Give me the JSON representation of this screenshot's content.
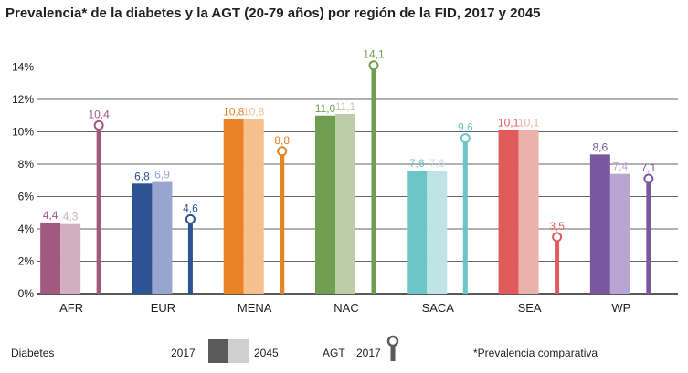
{
  "chart_data": {
    "type": "bar",
    "title": "Prevalencia* de la diabetes y la AGT (20-79 años) por región de la FID, 2017 y 2045",
    "categories": [
      "AFR",
      "EUR",
      "MENA",
      "NAC",
      "SACA",
      "SEA",
      "WP"
    ],
    "series": [
      {
        "name": "Diabetes 2017",
        "values": [
          4.4,
          6.8,
          10.8,
          11.0,
          7.6,
          10.1,
          8.6
        ]
      },
      {
        "name": "Diabetes 2045",
        "values": [
          4.3,
          6.9,
          10.8,
          11.1,
          7.6,
          10.1,
          7.4
        ]
      },
      {
        "name": "AGT 2017",
        "values": [
          10.4,
          4.6,
          8.8,
          14.1,
          9.6,
          3.5,
          7.1
        ]
      }
    ],
    "value_labels": {
      "d2017": [
        "4,4",
        "6,8",
        "10,8",
        "11,0",
        "7,6",
        "10,1",
        "8,6"
      ],
      "d2045": [
        "4,3",
        "6,9",
        "10,8",
        "11,1",
        "7,6",
        "10,1",
        "7,4"
      ],
      "agt": [
        "10,4",
        "4,6",
        "8,8",
        "14,1",
        "9,6",
        "3,5",
        "7,1"
      ]
    },
    "colors": {
      "d2017": [
        "#a15a7f",
        "#2c5494",
        "#e98326",
        "#6f9e50",
        "#6bc5c9",
        "#e25b5c",
        "#7b56a1"
      ],
      "d2045": [
        "#d2aec0",
        "#99a5cf",
        "#f6c08e",
        "#bccda8",
        "#bfe4e5",
        "#ebb2ab",
        "#b9a5d1"
      ],
      "agt": [
        "#a15a7f",
        "#2c5494",
        "#e98326",
        "#6f9e50",
        "#6bc5c9",
        "#e25b5c",
        "#7b56a1"
      ]
    },
    "yticks": [
      "0%",
      "2%",
      "4%",
      "6%",
      "8%",
      "10%",
      "12%",
      "14%"
    ],
    "ylim": [
      0,
      14
    ],
    "grid": true
  },
  "legend": {
    "diabetes_label": "Diabetes",
    "year_2017": "2017",
    "year_2045": "2045",
    "agt_label": "AGT",
    "agt_year": "2017",
    "footnote": "*Prevalencia comparativa",
    "swatch_dark": "#5a5a5a",
    "swatch_light": "#cfcfcf",
    "marker_color": "#5a5a5a"
  }
}
